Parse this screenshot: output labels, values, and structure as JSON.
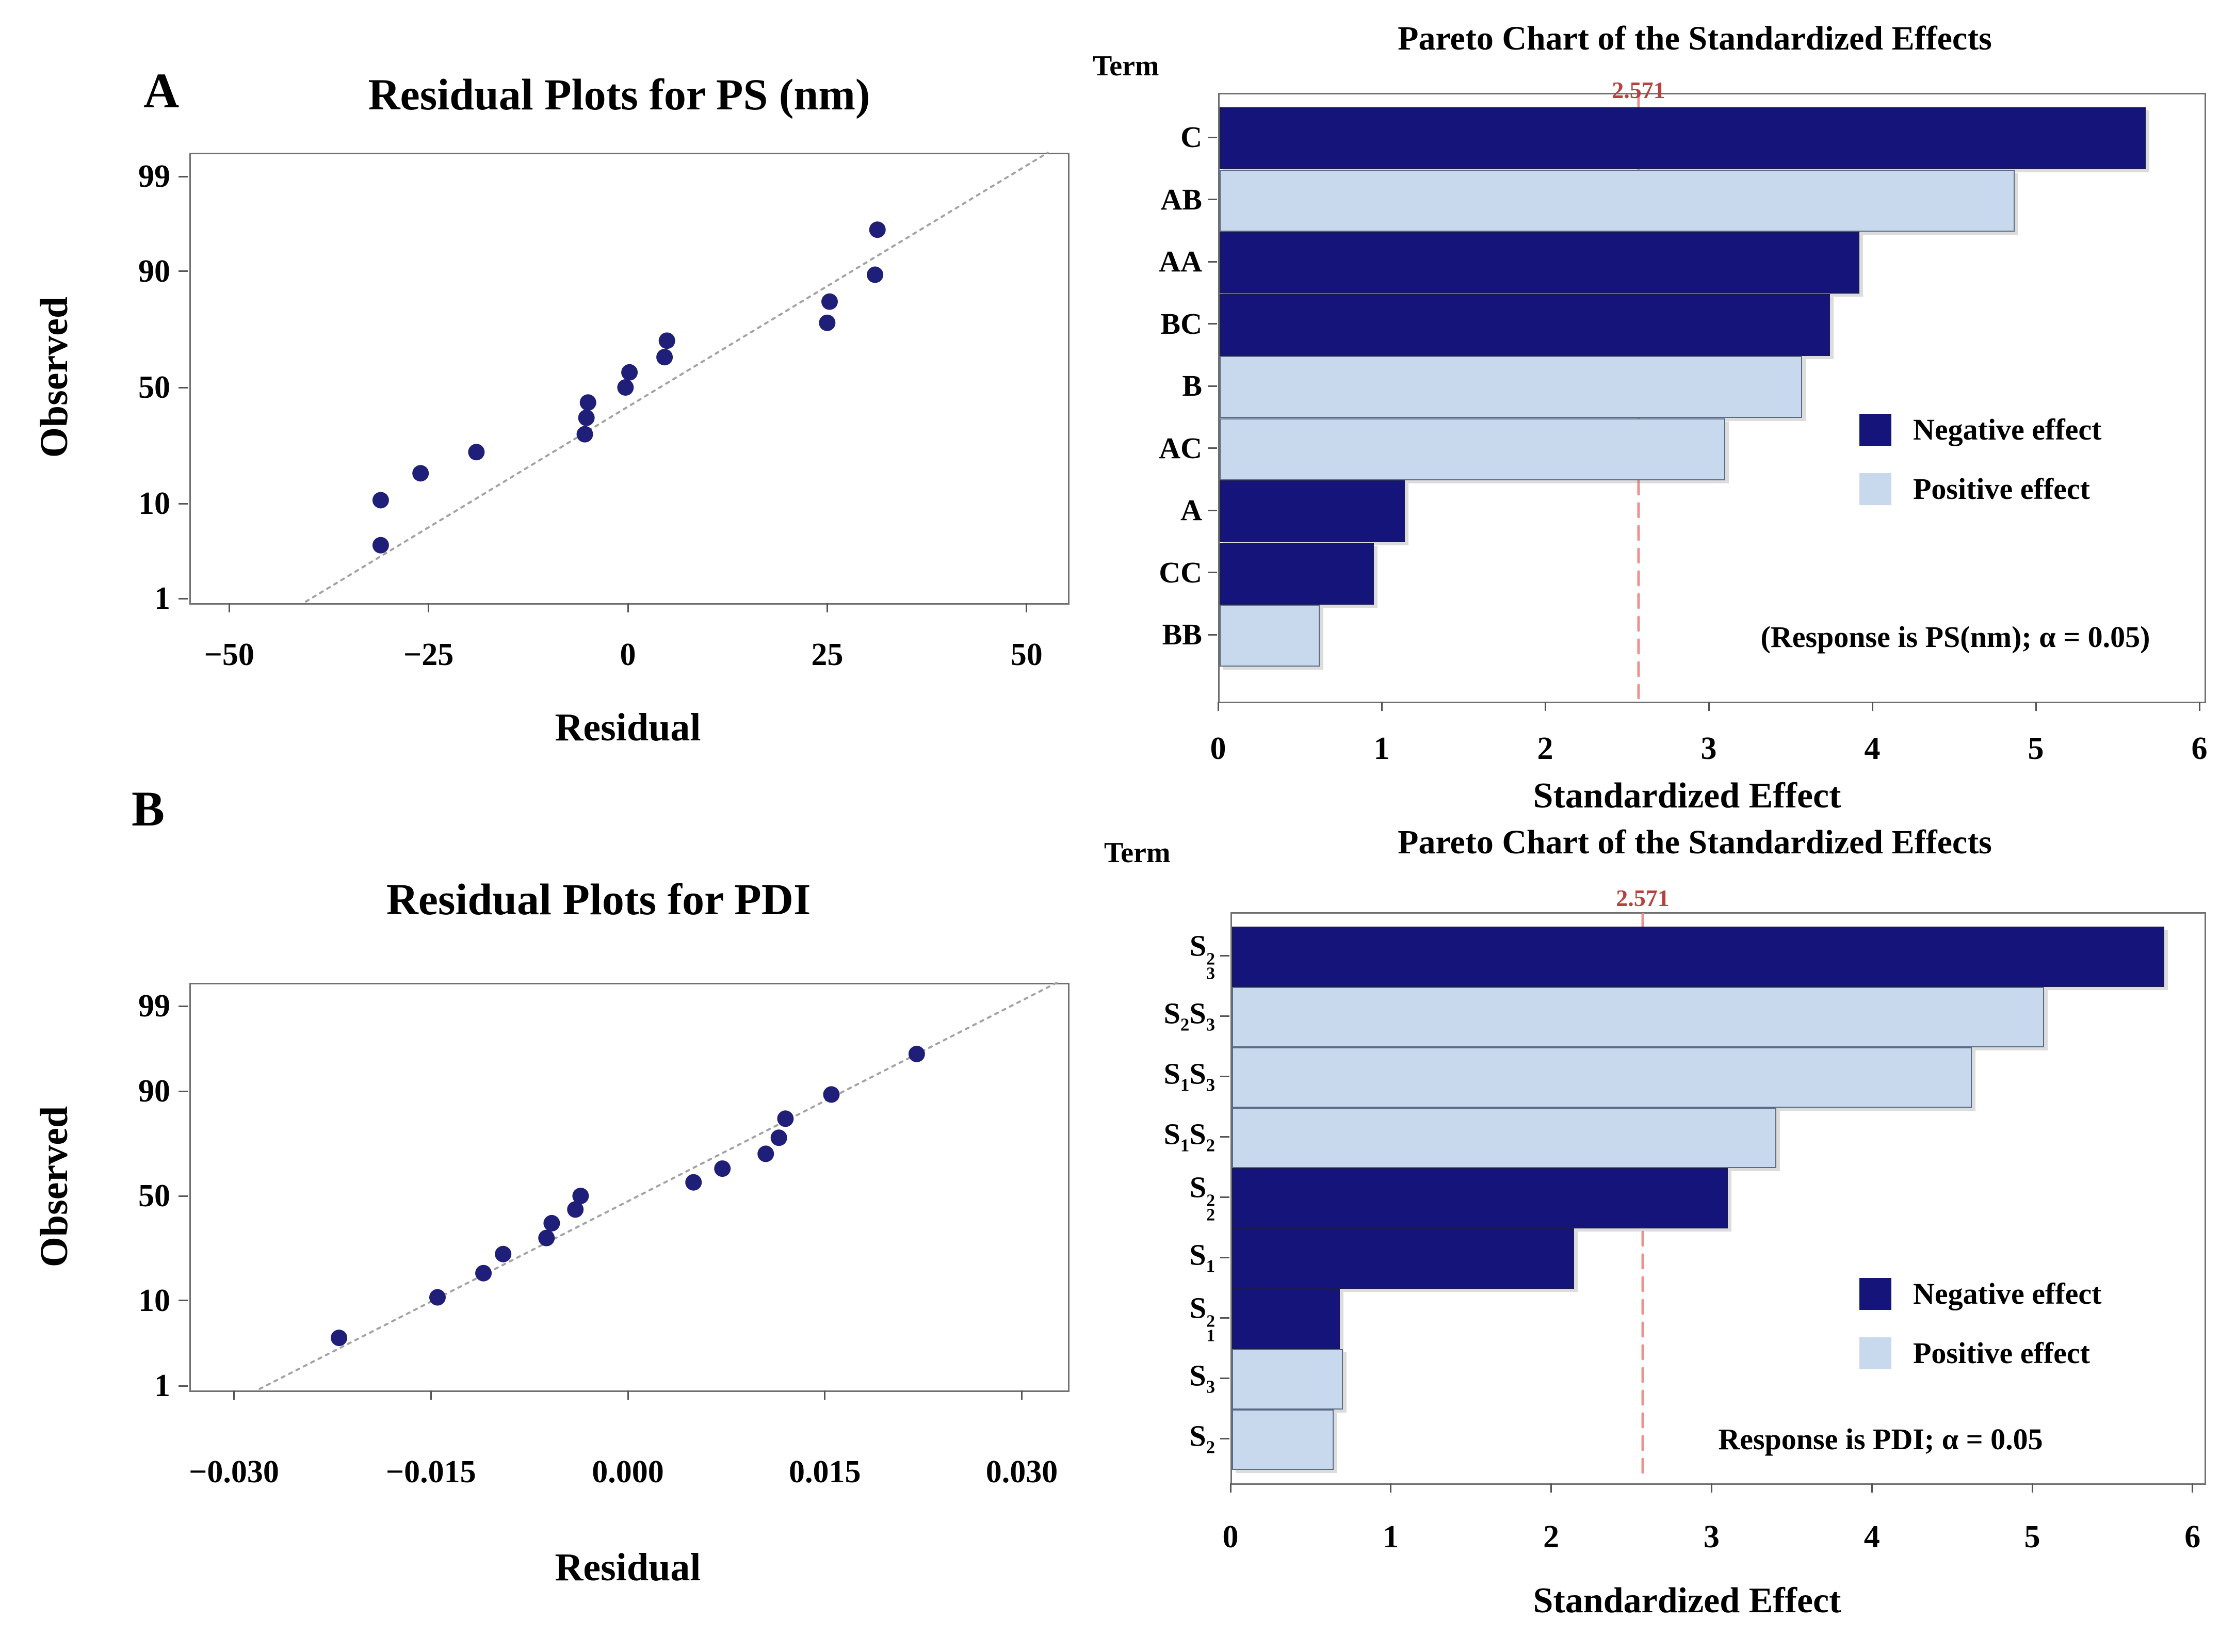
{
  "figure": {
    "panels": {
      "a": "A",
      "b": "B"
    },
    "colors": {
      "negative": "#14147a",
      "positive": "#c9d9ed",
      "dot": "#1f1f7a",
      "reference_line": "#ef8f8f",
      "reference_text": "#b6413e",
      "fit_line": "#a3a3a3",
      "frame": "#707070",
      "text": "#000000"
    }
  },
  "chart_data": [
    {
      "id": "ps-residual",
      "type": "scatter",
      "panel": "A",
      "title": "Residual Plots for PS (nm)",
      "xlabel": "Residual",
      "ylabel": "Observed",
      "y_scale": "normal-probability",
      "xlim": [
        -55,
        55
      ],
      "x_ticks": {
        "values": [
          -50,
          -25,
          0,
          25,
          50
        ],
        "labels": [
          "−50",
          "−25",
          "0",
          "25",
          "50"
        ]
      },
      "y_ticks": {
        "values": [
          99,
          90,
          50,
          10,
          1
        ],
        "labels": [
          "99",
          "90",
          "50",
          "10",
          "1"
        ]
      },
      "points": [
        [
          -31,
          4.1
        ],
        [
          -31,
          10.7
        ],
        [
          -26,
          17.2
        ],
        [
          -19,
          23.8
        ],
        [
          -5.4,
          30.3
        ],
        [
          -5.2,
          36.9
        ],
        [
          -5.0,
          43.4
        ],
        [
          -0.3,
          50.0
        ],
        [
          0.2,
          56.6
        ],
        [
          4.6,
          63.1
        ],
        [
          4.9,
          69.7
        ],
        [
          25,
          76.2
        ],
        [
          25.3,
          82.8
        ],
        [
          31,
          89.3
        ],
        [
          31.3,
          95.9
        ]
      ],
      "fit_line": {
        "mu": 4,
        "sigma": 18.8
      }
    },
    {
      "id": "ps-pareto",
      "type": "bar",
      "panel": "A",
      "title": "Pareto Chart of the Standardized Effects",
      "term_header": "Term",
      "xlabel": "Standardized Effect",
      "annotation": "(Response is PS(nm); α = 0.05)",
      "reference_value": 2.571,
      "reference_label": "2.571",
      "xlim": [
        0,
        6
      ],
      "x_ticks": {
        "values": [
          0,
          1,
          2,
          3,
          4,
          5,
          6
        ],
        "labels": [
          "0",
          "1",
          "2",
          "3",
          "4",
          "5",
          "6"
        ]
      },
      "legend": [
        {
          "label": "Negative effect",
          "key": "negative"
        },
        {
          "label": "Positive effect",
          "key": "positive"
        }
      ],
      "bars": [
        {
          "name": "C",
          "parts": [
            [
              "t",
              "C"
            ]
          ],
          "value": 5.65,
          "effect": "negative"
        },
        {
          "name": "AB",
          "parts": [
            [
              "t",
              "AB"
            ]
          ],
          "value": 4.85,
          "effect": "positive"
        },
        {
          "name": "AA",
          "parts": [
            [
              "t",
              "AA"
            ]
          ],
          "value": 3.9,
          "effect": "negative"
        },
        {
          "name": "BC",
          "parts": [
            [
              "t",
              "BC"
            ]
          ],
          "value": 3.72,
          "effect": "negative"
        },
        {
          "name": "B",
          "parts": [
            [
              "t",
              "B"
            ]
          ],
          "value": 3.55,
          "effect": "positive"
        },
        {
          "name": "AC",
          "parts": [
            [
              "t",
              "AC"
            ]
          ],
          "value": 3.08,
          "effect": "positive"
        },
        {
          "name": "A",
          "parts": [
            [
              "t",
              "A"
            ]
          ],
          "value": 1.12,
          "effect": "negative"
        },
        {
          "name": "CC",
          "parts": [
            [
              "t",
              "CC"
            ]
          ],
          "value": 0.93,
          "effect": "negative"
        },
        {
          "name": "BB",
          "parts": [
            [
              "t",
              "BB"
            ]
          ],
          "value": 0.6,
          "effect": "positive"
        }
      ]
    },
    {
      "id": "pdi-residual",
      "type": "scatter",
      "panel": "B",
      "title": "Residual Plots for PDI",
      "xlabel": "Residual",
      "ylabel": "Observed",
      "y_scale": "normal-probability",
      "xlim": [
        -0.0334,
        0.0334
      ],
      "x_ticks": {
        "values": [
          -0.03,
          -0.015,
          0.0,
          0.015,
          0.03
        ],
        "labels": [
          "−0.030",
          "−0.015",
          "0.000",
          "0.015",
          "0.030"
        ]
      },
      "y_ticks": {
        "values": [
          99,
          90,
          50,
          10,
          1
        ],
        "labels": [
          "99",
          "90",
          "50",
          "10",
          "1"
        ]
      },
      "points": [
        [
          -0.022,
          4.1
        ],
        [
          -0.0145,
          10.7
        ],
        [
          -0.011,
          17.2
        ],
        [
          -0.0095,
          23.8
        ],
        [
          -0.0062,
          30.3
        ],
        [
          -0.0058,
          36.9
        ],
        [
          -0.004,
          43.4
        ],
        [
          -0.0036,
          50.0
        ],
        [
          0.005,
          56.6
        ],
        [
          0.0072,
          63.1
        ],
        [
          0.0105,
          69.7
        ],
        [
          0.0115,
          76.2
        ],
        [
          0.012,
          82.8
        ],
        [
          0.0155,
          89.3
        ],
        [
          0.022,
          95.9
        ]
      ],
      "fit_line": {
        "mu": 0.0008,
        "sigma": 0.0122
      }
    },
    {
      "id": "pdi-pareto",
      "type": "bar",
      "panel": "B",
      "title": "Pareto Chart of the Standardized Effects",
      "term_header": "Term",
      "xlabel": "Standardized Effect",
      "annotation": "Response is PDI; α = 0.05",
      "reference_value": 2.571,
      "reference_label": "2.571",
      "xlim": [
        0,
        6
      ],
      "x_ticks": {
        "values": [
          0,
          1,
          2,
          3,
          4,
          5,
          6
        ],
        "labels": [
          "0",
          "1",
          "2",
          "3",
          "4",
          "5",
          "6"
        ]
      },
      "legend": [
        {
          "label": "Negative effect",
          "key": "negative"
        },
        {
          "label": "Positive effect",
          "key": "positive"
        }
      ],
      "bars": [
        {
          "name": "S3^2",
          "parts": [
            [
              "t",
              "S"
            ],
            [
              "ss",
              "2",
              "3"
            ]
          ],
          "value": 5.8,
          "effect": "negative"
        },
        {
          "name": "S2S3",
          "parts": [
            [
              "t",
              "S"
            ],
            [
              "sb",
              "2"
            ],
            [
              "t",
              "S"
            ],
            [
              "sb",
              "3"
            ]
          ],
          "value": 5.05,
          "effect": "positive"
        },
        {
          "name": "S1S3",
          "parts": [
            [
              "t",
              "S"
            ],
            [
              "sb",
              "1"
            ],
            [
              "t",
              "S"
            ],
            [
              "sb",
              "3"
            ]
          ],
          "value": 4.6,
          "effect": "positive"
        },
        {
          "name": "S1S2",
          "parts": [
            [
              "t",
              "S"
            ],
            [
              "sb",
              "1"
            ],
            [
              "t",
              "S"
            ],
            [
              "sb",
              "2"
            ]
          ],
          "value": 3.38,
          "effect": "positive"
        },
        {
          "name": "S2^2",
          "parts": [
            [
              "t",
              "S"
            ],
            [
              "ss",
              "2",
              "2"
            ]
          ],
          "value": 3.08,
          "effect": "negative"
        },
        {
          "name": "S1",
          "parts": [
            [
              "t",
              "S"
            ],
            [
              "sb",
              "1"
            ]
          ],
          "value": 2.12,
          "effect": "negative"
        },
        {
          "name": "S1^2",
          "parts": [
            [
              "t",
              "S"
            ],
            [
              "ss",
              "2",
              "1"
            ]
          ],
          "value": 0.66,
          "effect": "negative"
        },
        {
          "name": "S3",
          "parts": [
            [
              "t",
              "S"
            ],
            [
              "sb",
              "3"
            ]
          ],
          "value": 0.68,
          "effect": "positive"
        },
        {
          "name": "S2",
          "parts": [
            [
              "t",
              "S"
            ],
            [
              "sb",
              "2"
            ]
          ],
          "value": 0.62,
          "effect": "positive"
        }
      ]
    }
  ]
}
